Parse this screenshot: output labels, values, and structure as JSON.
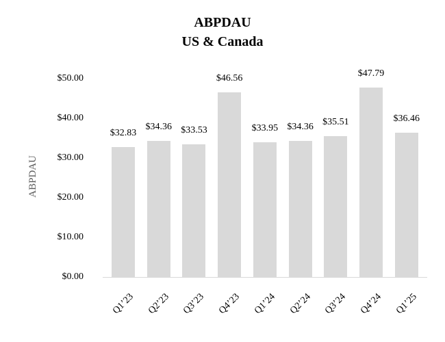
{
  "chart_data": {
    "type": "bar",
    "title": "ABPDAU",
    "subtitle": "US & Canada",
    "ylabel": "ABPDAU",
    "xlabel": "",
    "categories": [
      "Q1’23",
      "Q2’23",
      "Q3’23",
      "Q4’23",
      "Q1’24",
      "Q2’24",
      "Q3’24",
      "Q4’24",
      "Q1’25"
    ],
    "values": [
      32.83,
      34.36,
      33.53,
      46.56,
      33.95,
      34.36,
      35.51,
      47.79,
      36.46
    ],
    "data_labels": [
      "$32.83",
      "$34.36",
      "$33.53",
      "$46.56",
      "$33.95",
      "$34.36",
      "$35.51",
      "$47.79",
      "$36.46"
    ],
    "ytick_labels": [
      "$0.00",
      "$10.00",
      "$20.00",
      "$30.00",
      "$40.00",
      "$50.00"
    ],
    "ytick_values": [
      0,
      10,
      20,
      30,
      40,
      50
    ],
    "ylim": [
      0,
      50
    ],
    "grid": false,
    "legend": "none",
    "bar_color": "#d9d9d9",
    "text_color": "#000000",
    "axis_title_color": "#595959",
    "axis_line_color": "#d9d9d9"
  }
}
